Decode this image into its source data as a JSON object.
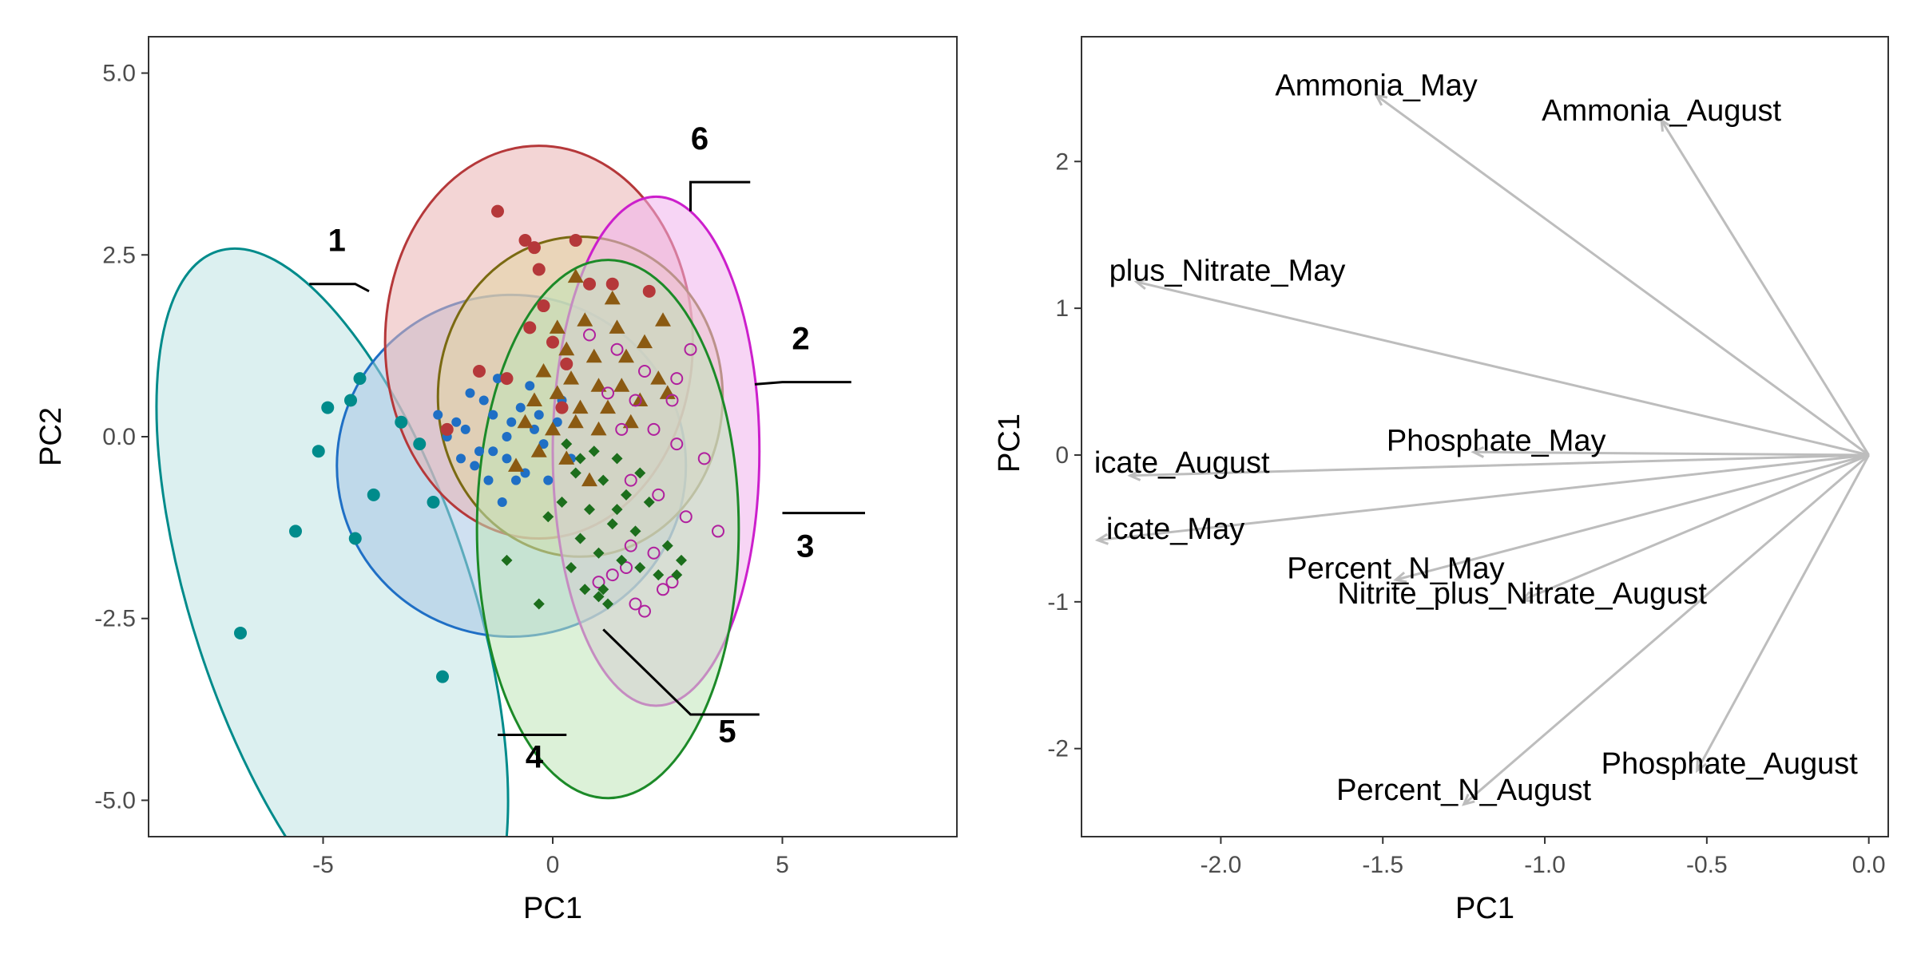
{
  "chart_data": [
    {
      "type": "scatter",
      "xlabel": "PC1",
      "ylabel": "PC2",
      "xlim": [
        -8.8,
        8.8
      ],
      "ylim": [
        -5.5,
        5.5
      ],
      "x_ticks": [
        -5,
        0,
        5
      ],
      "x_tick_labels": [
        "-5",
        "0",
        "5"
      ],
      "y_ticks": [
        5,
        2.5,
        0,
        -2.5,
        -5
      ],
      "y_tick_labels": [
        "5.0",
        "2.5",
        "0.0",
        "-2.5",
        "-5.0"
      ],
      "grid": false,
      "ellipses": [
        {
          "group": "1",
          "color": "#008b8b",
          "fill": "#bfe3e3",
          "cx": -4.8,
          "cy": -2.3,
          "rx": 3.05,
          "ry": 5.1,
          "angle": -18
        },
        {
          "group": "4",
          "color": "#1f6fc5",
          "fill": "#a7c7e6",
          "cx": -0.9,
          "cy": -0.4,
          "rx": 3.8,
          "ry": 2.35,
          "angle": 0
        },
        {
          "group": "6",
          "color": "#b5383a",
          "fill": "#e9b3b3",
          "cx": -0.3,
          "cy": 1.3,
          "rx": 3.35,
          "ry": 2.7,
          "angle": 0
        },
        {
          "group": "3",
          "color": "#7a6a12",
          "fill": "#e1d6a3",
          "cx": 0.6,
          "cy": 0.55,
          "rx": 3.1,
          "ry": 2.2,
          "angle": 0
        },
        {
          "group": "2",
          "color": "#cc1fcc",
          "fill": "#f0b3ec",
          "cx": 2.25,
          "cy": -0.2,
          "rx": 2.25,
          "ry": 3.5,
          "angle": 0
        },
        {
          "group": "5",
          "color": "#1c8a28",
          "fill": "#bfe6b8",
          "cx": 1.2,
          "cy": -1.27,
          "rx": 2.85,
          "ry": 3.7,
          "angle": 0
        }
      ],
      "series": [
        {
          "name": "1",
          "color": "#008b8b",
          "marker": "circle-large",
          "points": [
            [
              -4.2,
              0.8
            ],
            [
              -4.4,
              0.5
            ],
            [
              -4.9,
              0.4
            ],
            [
              -5.1,
              -0.2
            ],
            [
              -3.9,
              -0.8
            ],
            [
              -4.3,
              -1.4
            ],
            [
              -5.6,
              -1.3
            ],
            [
              -6.8,
              -2.7
            ],
            [
              -2.4,
              -3.3
            ],
            [
              -2.6,
              -0.9
            ],
            [
              -2.9,
              -0.1
            ],
            [
              -3.3,
              0.2
            ]
          ]
        },
        {
          "name": "4",
          "color": "#1f6fc5",
          "marker": "circle-small",
          "points": [
            [
              -2.3,
              0.0
            ],
            [
              -1.9,
              0.1
            ],
            [
              -1.6,
              -0.2
            ],
            [
              -1.3,
              0.3
            ],
            [
              -1.0,
              -0.3
            ],
            [
              -0.9,
              0.2
            ],
            [
              -0.6,
              -0.5
            ],
            [
              -0.4,
              0.1
            ],
            [
              -1.7,
              -0.4
            ],
            [
              -1.4,
              -0.6
            ],
            [
              -2.0,
              -0.3
            ],
            [
              -0.7,
              0.4
            ],
            [
              -0.2,
              -0.1
            ],
            [
              0.1,
              0.2
            ],
            [
              0.4,
              -0.3
            ],
            [
              -1.1,
              -0.9
            ],
            [
              -0.8,
              -0.6
            ],
            [
              -1.5,
              0.5
            ],
            [
              -2.5,
              0.3
            ],
            [
              -1.2,
              0.8
            ],
            [
              -0.5,
              0.7
            ],
            [
              0.2,
              0.5
            ],
            [
              -0.1,
              -0.6
            ],
            [
              -1.8,
              0.6
            ],
            [
              -1.0,
              0.0
            ],
            [
              -1.3,
              -0.2
            ],
            [
              -0.3,
              0.3
            ],
            [
              -2.1,
              0.2
            ]
          ]
        },
        {
          "name": "6",
          "color": "#b5383a",
          "marker": "circle-medium",
          "points": [
            [
              -1.2,
              3.1
            ],
            [
              -0.6,
              2.7
            ],
            [
              -0.4,
              2.6
            ],
            [
              0.5,
              2.7
            ],
            [
              -0.3,
              2.3
            ],
            [
              0.8,
              2.1
            ],
            [
              1.3,
              2.1
            ],
            [
              2.1,
              2.0
            ],
            [
              -0.5,
              1.5
            ],
            [
              0.0,
              1.3
            ],
            [
              -0.2,
              1.8
            ],
            [
              0.3,
              1.0
            ],
            [
              -1.6,
              0.9
            ],
            [
              -1.0,
              0.8
            ],
            [
              -2.3,
              0.1
            ],
            [
              0.2,
              0.4
            ]
          ]
        },
        {
          "name": "3",
          "color": "#8b5a12",
          "marker": "triangle",
          "points": [
            [
              0.5,
              2.2
            ],
            [
              1.3,
              1.9
            ],
            [
              0.1,
              1.5
            ],
            [
              0.7,
              1.6
            ],
            [
              1.4,
              1.5
            ],
            [
              2.4,
              1.6
            ],
            [
              0.3,
              1.2
            ],
            [
              0.9,
              1.1
            ],
            [
              1.6,
              1.1
            ],
            [
              2.0,
              1.3
            ],
            [
              -0.2,
              0.9
            ],
            [
              0.4,
              0.8
            ],
            [
              1.0,
              0.7
            ],
            [
              1.5,
              0.7
            ],
            [
              2.3,
              0.8
            ],
            [
              -0.4,
              0.5
            ],
            [
              0.1,
              0.6
            ],
            [
              0.6,
              0.4
            ],
            [
              1.2,
              0.4
            ],
            [
              1.9,
              0.5
            ],
            [
              -0.6,
              0.2
            ],
            [
              0.0,
              0.1
            ],
            [
              0.5,
              0.2
            ],
            [
              1.0,
              0.1
            ],
            [
              1.7,
              0.2
            ],
            [
              2.5,
              0.6
            ],
            [
              -0.3,
              -0.2
            ],
            [
              0.3,
              -0.3
            ],
            [
              0.8,
              -0.6
            ],
            [
              -0.8,
              -0.4
            ]
          ]
        },
        {
          "name": "2",
          "color": "#b0209e",
          "marker": "circle-open",
          "points": [
            [
              0.8,
              1.4
            ],
            [
              1.4,
              1.2
            ],
            [
              2.0,
              0.9
            ],
            [
              2.7,
              0.8
            ],
            [
              3.0,
              1.2
            ],
            [
              1.2,
              0.6
            ],
            [
              1.8,
              0.5
            ],
            [
              2.6,
              0.5
            ],
            [
              1.5,
              0.1
            ],
            [
              2.2,
              0.1
            ],
            [
              2.7,
              -0.1
            ],
            [
              3.3,
              -0.3
            ],
            [
              1.7,
              -0.6
            ],
            [
              2.3,
              -0.8
            ],
            [
              2.9,
              -1.1
            ],
            [
              3.6,
              -1.3
            ],
            [
              1.7,
              -1.5
            ],
            [
              2.2,
              -1.6
            ],
            [
              1.6,
              -1.8
            ],
            [
              2.4,
              -2.1
            ],
            [
              1.8,
              -2.3
            ],
            [
              2.0,
              -2.4
            ],
            [
              2.6,
              -2.0
            ],
            [
              1.0,
              -2.0
            ],
            [
              1.3,
              -1.9
            ]
          ]
        },
        {
          "name": "5",
          "color": "#1c6e1c",
          "marker": "diamond",
          "points": [
            [
              0.3,
              -0.1
            ],
            [
              0.9,
              -0.2
            ],
            [
              1.4,
              -0.3
            ],
            [
              1.9,
              -0.5
            ],
            [
              0.5,
              -0.5
            ],
            [
              1.1,
              -0.6
            ],
            [
              1.6,
              -0.8
            ],
            [
              2.1,
              -0.9
            ],
            [
              0.2,
              -0.9
            ],
            [
              0.8,
              -1.0
            ],
            [
              1.3,
              -1.2
            ],
            [
              1.8,
              -1.3
            ],
            [
              2.5,
              -1.5
            ],
            [
              2.8,
              -1.7
            ],
            [
              0.6,
              -1.4
            ],
            [
              1.0,
              -1.6
            ],
            [
              1.5,
              -1.7
            ],
            [
              1.9,
              -1.8
            ],
            [
              2.3,
              -1.9
            ],
            [
              2.7,
              -1.9
            ],
            [
              0.4,
              -1.8
            ],
            [
              -1.0,
              -1.7
            ],
            [
              -0.3,
              -2.3
            ],
            [
              1.0,
              -2.2
            ],
            [
              1.2,
              -2.3
            ],
            [
              0.7,
              -2.1
            ],
            [
              1.1,
              -2.1
            ],
            [
              -0.1,
              -1.1
            ],
            [
              0.6,
              -0.3
            ],
            [
              1.4,
              -1.0
            ]
          ]
        }
      ],
      "group_labels": [
        {
          "text": "1",
          "ellipse": "1",
          "x": -4.7,
          "y": 2.55,
          "leader": [
            [
              -5.3,
              2.1
            ],
            [
              -4.3,
              2.1
            ],
            [
              -4.0,
              2.0
            ]
          ]
        },
        {
          "text": "6",
          "ellipse": "6",
          "x": 3.2,
          "y": 3.95,
          "leader": [
            [
              4.3,
              3.5
            ],
            [
              3.0,
              3.5
            ],
            [
              3.0,
              3.1
            ]
          ]
        },
        {
          "text": "2",
          "ellipse": "2",
          "x": 5.4,
          "y": 1.2,
          "leader": [
            [
              6.5,
              0.75
            ],
            [
              5.0,
              0.75
            ],
            [
              4.4,
              0.72
            ]
          ]
        },
        {
          "text": "3",
          "ellipse": "3",
          "x": 5.5,
          "y": -1.65,
          "leader": [
            [
              5.0,
              -1.05
            ],
            [
              6.8,
              -1.05
            ]
          ]
        },
        {
          "text": "4",
          "ellipse": "4",
          "x": -0.4,
          "y": -4.55,
          "leader": [
            [
              -1.2,
              -4.1
            ],
            [
              0.3,
              -4.1
            ]
          ]
        },
        {
          "text": "5",
          "ellipse": "5",
          "x": 3.8,
          "y": -4.2,
          "leader": [
            [
              1.1,
              -2.65
            ],
            [
              3.0,
              -3.82
            ],
            [
              4.5,
              -3.82
            ]
          ]
        }
      ]
    },
    {
      "type": "biplot",
      "xlabel": "PC1",
      "ylabel": "PC1",
      "xlim": [
        -2.43,
        0.06
      ],
      "ylim": [
        -2.6,
        2.85
      ],
      "x_ticks": [
        -2.0,
        -1.5,
        -1.0,
        -0.5,
        0.0
      ],
      "x_tick_labels": [
        "-2.0",
        "-1.5",
        "-1.0",
        "-0.5",
        "0.0"
      ],
      "y_ticks": [
        2,
        1,
        0,
        -1,
        -2
      ],
      "y_tick_labels": [
        "2",
        "1",
        "0",
        "-1",
        "-2"
      ],
      "grid": false,
      "arrow_color": "#bdbdbd",
      "vectors": [
        {
          "label": "Ammonia_May",
          "x": -1.52,
          "y": 2.45,
          "label_x": -1.52,
          "label_y": 2.52
        },
        {
          "label": "Ammonia_August",
          "x": -0.64,
          "y": 2.28,
          "label_x": -0.64,
          "label_y": 2.35
        },
        {
          "label": "plus_Nitrate_May",
          "x": -2.26,
          "y": 1.18,
          "label_x": -1.98,
          "label_y": 1.26
        },
        {
          "label": "Phosphate_May",
          "x": -1.22,
          "y": 0.02,
          "label_x": -1.15,
          "label_y": 0.1
        },
        {
          "label": "icate_August",
          "x": -2.28,
          "y": -0.14,
          "label_x": -2.12,
          "label_y": -0.05
        },
        {
          "label": "icate_May",
          "x": -2.38,
          "y": -0.58,
          "label_x": -2.14,
          "label_y": -0.5
        },
        {
          "label": "Percent_N_May",
          "x": -1.46,
          "y": -0.85,
          "label_x": -1.46,
          "label_y": -0.77
        },
        {
          "label": "Nitrite_plus_Nitrate_August",
          "x": -1.07,
          "y": -0.99,
          "label_x": -1.07,
          "label_y": -0.94
        },
        {
          "label": "Phosphate_August",
          "x": -0.53,
          "y": -2.15,
          "label_x": -0.43,
          "label_y": -2.1
        },
        {
          "label": "Percent_N_August",
          "x": -1.25,
          "y": -2.38,
          "label_x": -1.25,
          "label_y": -2.28
        }
      ]
    }
  ]
}
